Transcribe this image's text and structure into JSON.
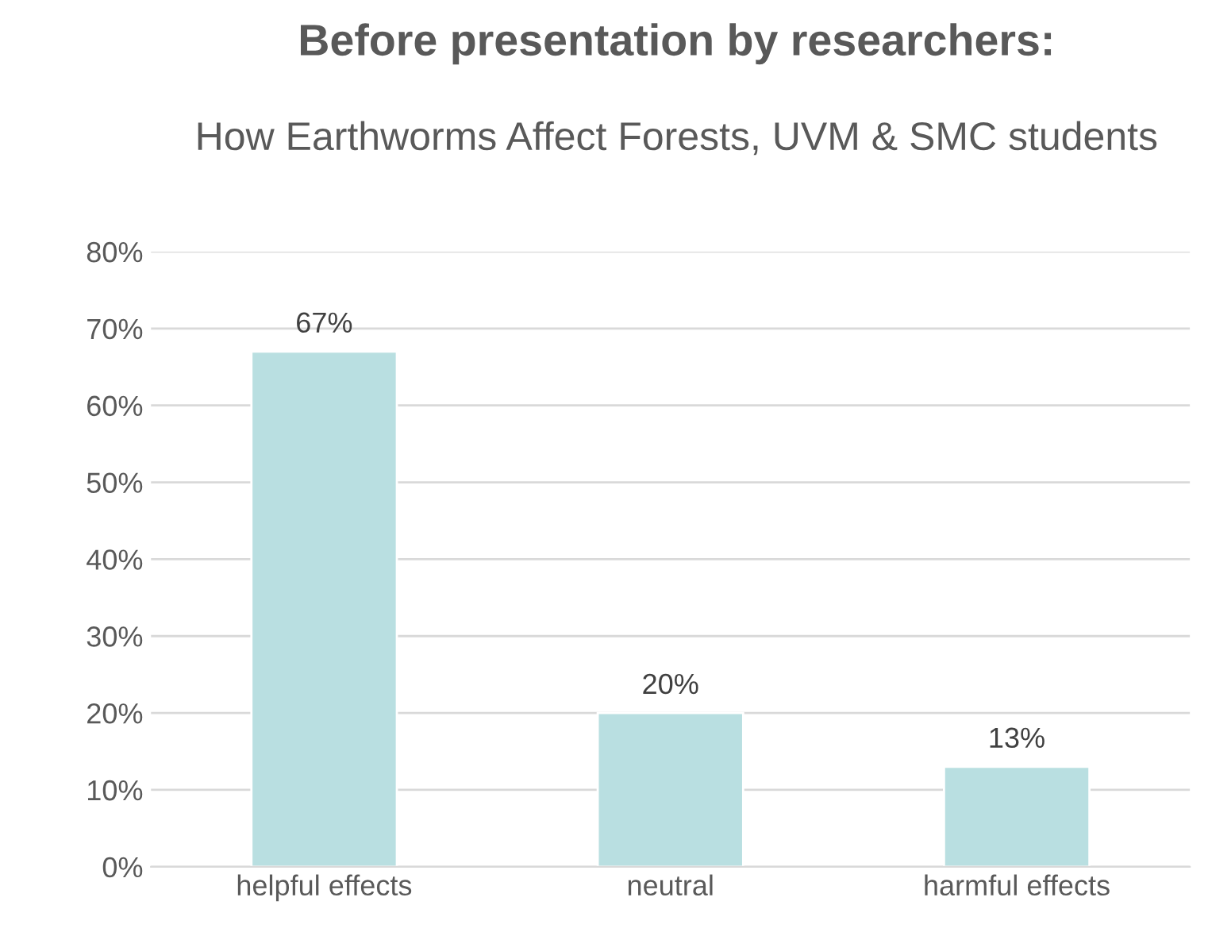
{
  "chart_data": {
    "type": "bar",
    "title": "Before presentation by researchers:",
    "subtitle": "How Earthworms Affect Forests, UVM & SMC students",
    "categories": [
      "helpful effects",
      "neutral",
      "harmful effects"
    ],
    "values": [
      67,
      20,
      13
    ],
    "value_labels": [
      "67%",
      "20%",
      "13%"
    ],
    "color": "#b9dfe1",
    "ylim": [
      0,
      80
    ],
    "yticks": [
      {
        "value": 0,
        "label": "0%"
      },
      {
        "value": 10,
        "label": "10%"
      },
      {
        "value": 20,
        "label": "20%"
      },
      {
        "value": 30,
        "label": "30%"
      },
      {
        "value": 40,
        "label": "40%"
      },
      {
        "value": 50,
        "label": "50%"
      },
      {
        "value": 60,
        "label": "60%"
      },
      {
        "value": 70,
        "label": "70%"
      },
      {
        "value": 80,
        "label": "80%"
      }
    ],
    "grid": "y",
    "legend": false
  }
}
